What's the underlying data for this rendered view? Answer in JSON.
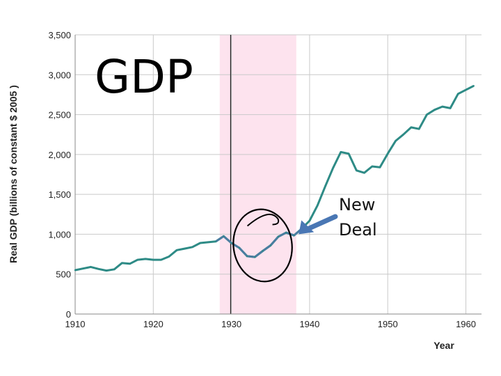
{
  "chart_data": {
    "type": "line",
    "title": "GDP",
    "xlabel": "Year",
    "ylabel": "Real GDP (billions of constant $ 2005 )",
    "xlim": [
      1910,
      1962
    ],
    "ylim": [
      0,
      3500
    ],
    "x_ticks": [
      1910,
      1920,
      1930,
      1940,
      1950,
      1960
    ],
    "x_tick_labels": [
      "1910",
      "1920",
      "1930",
      "1940",
      "1950",
      "1960"
    ],
    "y_ticks": [
      0,
      500,
      1000,
      1500,
      2000,
      2500,
      3000,
      3500
    ],
    "y_tick_labels": [
      "0",
      "500",
      "1,000",
      "1,500",
      "2,000",
      "2,500",
      "3,000",
      "3,500"
    ],
    "grid": true,
    "shaded_region": {
      "from": 1928.5,
      "to": 1938.3,
      "color": "#fde3ee"
    },
    "vertical_line": 1929.9,
    "annotation": {
      "text_line1": "New",
      "text_line2": "Deal",
      "arrow_target": [
        1938.6,
        1000
      ]
    },
    "circle_center": [
      1934,
      860
    ],
    "colors": {
      "line_main": "#2e8b86",
      "line_highlight": "#4a7da0",
      "arrow": "#4a77b4"
    },
    "series": [
      {
        "x": [
          1910,
          1911,
          1912,
          1913,
          1914,
          1915,
          1916,
          1917,
          1918,
          1919,
          1920,
          1921,
          1922,
          1923,
          1924,
          1925,
          1926,
          1927,
          1928,
          1929,
          1930,
          1931,
          1932,
          1933,
          1934,
          1935,
          1936,
          1937,
          1938,
          1939,
          1940,
          1941,
          1942,
          1943,
          1944,
          1945,
          1946,
          1947,
          1948,
          1949,
          1950,
          1951,
          1952,
          1953,
          1954,
          1955,
          1956,
          1957,
          1958,
          1959,
          1960,
          1961
        ],
        "y": [
          550,
          570,
          590,
          565,
          545,
          560,
          640,
          630,
          680,
          690,
          680,
          680,
          720,
          800,
          820,
          840,
          890,
          900,
          910,
          975,
          890,
          830,
          725,
          715,
          790,
          860,
          970,
          1020,
          985,
          1070,
          1170,
          1360,
          1600,
          1830,
          2030,
          2010,
          1800,
          1770,
          1850,
          1840,
          2010,
          2170,
          2250,
          2340,
          2320,
          2500,
          2560,
          2600,
          2580,
          2760,
          2810,
          2860
        ]
      }
    ]
  }
}
